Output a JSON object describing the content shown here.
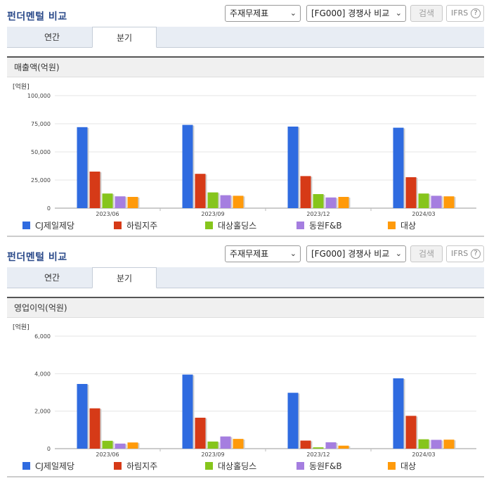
{
  "colors": {
    "series": [
      "#2f6be0",
      "#d63a17",
      "#86c51c",
      "#a57ee0",
      "#ff9a0a"
    ]
  },
  "panels": [
    {
      "title": "펀더멘털 비교",
      "select1": "주재무제표",
      "select2": "[FG000] 경쟁사 비교",
      "search_label": "검색",
      "ifrs_label": "IFRS",
      "help_glyph": "?",
      "tabs": [
        "연간",
        "분기"
      ],
      "active_tab": "분기",
      "section_title": "매출액(억원)",
      "legend": [
        "CJ제일제당",
        "하림지주",
        "대상홀딩스",
        "동원F&B",
        "대상"
      ]
    },
    {
      "title": "펀더멘털 비교",
      "select1": "주재무제표",
      "select2": "[FG000] 경쟁사 비교",
      "search_label": "검색",
      "ifrs_label": "IFRS",
      "help_glyph": "?",
      "tabs": [
        "연간",
        "분기"
      ],
      "active_tab": "분기",
      "section_title": "영업이익(억원)",
      "legend": [
        "CJ제일제당",
        "하림지주",
        "대상홀딩스",
        "동원F&B",
        "대상"
      ]
    }
  ],
  "chart_data": [
    {
      "type": "bar",
      "title": "매출액(억원)",
      "unit_label": "[억원]",
      "categories": [
        "2023/06",
        "2023/09",
        "2023/12",
        "2024/03"
      ],
      "yticks": [
        "0",
        "25,000",
        "50,000",
        "75,000",
        "100,000"
      ],
      "ylim": [
        0,
        100000
      ],
      "grid": true,
      "legend_position": "bottom",
      "series": [
        {
          "name": "CJ제일제당",
          "values": [
            72000,
            74000,
            72500,
            71500
          ]
        },
        {
          "name": "하림지주",
          "values": [
            32500,
            30500,
            28500,
            27500
          ]
        },
        {
          "name": "대상홀딩스",
          "values": [
            13000,
            14000,
            12500,
            13000
          ]
        },
        {
          "name": "동원F&B",
          "values": [
            10500,
            11500,
            9500,
            11000
          ]
        },
        {
          "name": "대상",
          "values": [
            10000,
            11000,
            10000,
            10500
          ]
        }
      ]
    },
    {
      "type": "bar",
      "title": "영업이익(억원)",
      "unit_label": "[억원]",
      "categories": [
        "2023/06",
        "2023/09",
        "2023/12",
        "2024/03"
      ],
      "yticks": [
        "0",
        "2,000",
        "4,000",
        "6,000"
      ],
      "ylim": [
        0,
        6000
      ],
      "grid": true,
      "legend_position": "bottom",
      "series": [
        {
          "name": "CJ제일제당",
          "values": [
            3450,
            3950,
            2980,
            3750
          ]
        },
        {
          "name": "하림지주",
          "values": [
            2150,
            1650,
            430,
            1750
          ]
        },
        {
          "name": "대상홀딩스",
          "values": [
            420,
            380,
            70,
            500
          ]
        },
        {
          "name": "동원F&B",
          "values": [
            270,
            650,
            340,
            470
          ]
        },
        {
          "name": "대상",
          "values": [
            330,
            520,
            160,
            480
          ]
        }
      ]
    }
  ]
}
